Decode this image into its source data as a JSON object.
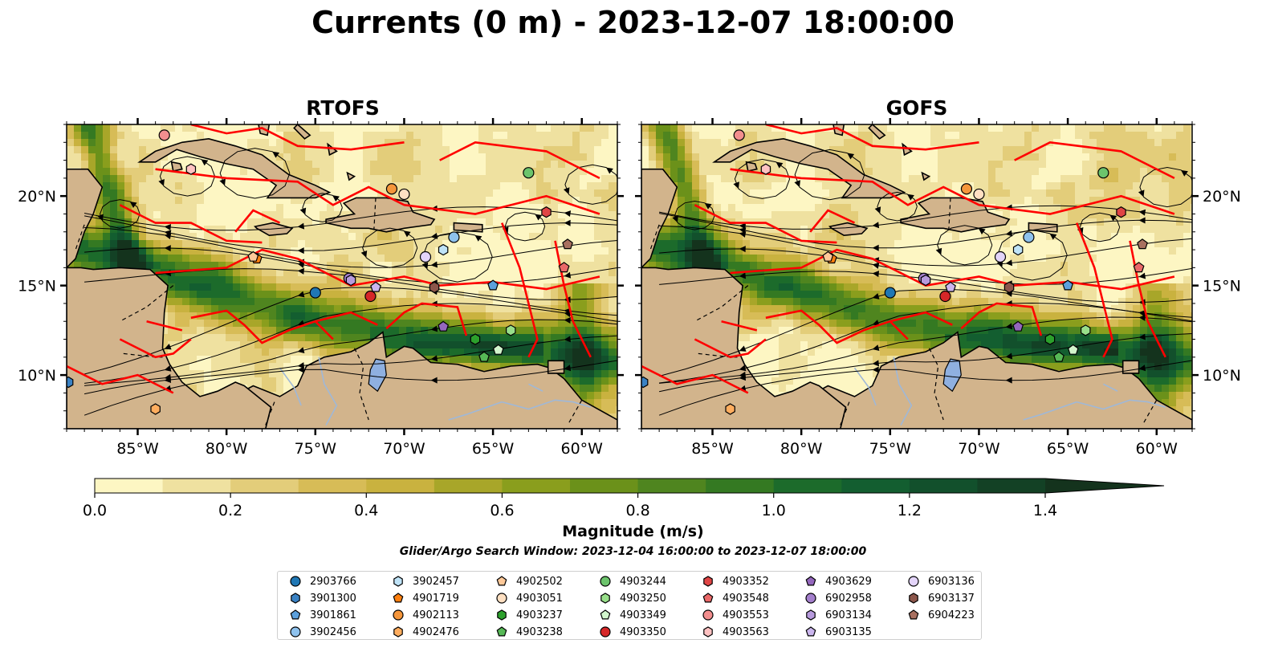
{
  "title": "Currents (0 m) - 2023-12-07 18:00:00",
  "panels": [
    {
      "name": "RTOFS"
    },
    {
      "name": "GOFS"
    }
  ],
  "lat_ticks": [
    "20°N",
    "15°N",
    "10°N"
  ],
  "lon_ticks": [
    "85°W",
    "80°W",
    "75°W",
    "70°W",
    "65°W",
    "60°W"
  ],
  "colorbar": {
    "label": "Magnitude (m/s)",
    "ticks": [
      "0.0",
      "0.2",
      "0.4",
      "0.6",
      "0.8",
      "1.0",
      "1.2",
      "1.4"
    ],
    "vmin": 0.0,
    "vmax": 1.5,
    "colors": [
      "#fdf6c3",
      "#efe1a0",
      "#e3cd7a",
      "#d7bc57",
      "#c9b23f",
      "#a8a629",
      "#8a9e1d",
      "#6b911a",
      "#4f851f",
      "#347922",
      "#1c6b2b",
      "#135e30",
      "#12502c",
      "#134125",
      "#14331d"
    ]
  },
  "search_window": "Glider/Argo Search Window: 2023-12-04 16:00:00 to 2023-12-07 18:00:00",
  "colors": {
    "land": "#d2b48c",
    "eez": "#ff0000",
    "lake": "#8fb0e0",
    "river": "#9fb8d8"
  },
  "legend": [
    {
      "id": "2903766",
      "shape": "circle",
      "color": "#1f77b4"
    },
    {
      "id": "3901300",
      "shape": "hexagon",
      "color": "#3a82c4"
    },
    {
      "id": "3901861",
      "shape": "pentagon",
      "color": "#5ca0dc"
    },
    {
      "id": "3902456",
      "shape": "circle",
      "color": "#8ec2ee"
    },
    {
      "id": "3902457",
      "shape": "hexagon",
      "color": "#bfe3f7"
    },
    {
      "id": "4901719",
      "shape": "pentagon",
      "color": "#ff7f0e"
    },
    {
      "id": "4902113",
      "shape": "circle",
      "color": "#f5963b"
    },
    {
      "id": "4902476",
      "shape": "hexagon",
      "color": "#ffad5e"
    },
    {
      "id": "4902502",
      "shape": "pentagon",
      "color": "#ffc999"
    },
    {
      "id": "4903051",
      "shape": "circle",
      "color": "#ffe0c2"
    },
    {
      "id": "4903237",
      "shape": "hexagon",
      "color": "#2ca02c"
    },
    {
      "id": "4903238",
      "shape": "pentagon",
      "color": "#56b856"
    },
    {
      "id": "4903244",
      "shape": "circle",
      "color": "#6cc46c"
    },
    {
      "id": "4903250",
      "shape": "hexagon",
      "color": "#98df8a"
    },
    {
      "id": "4903349",
      "shape": "pentagon",
      "color": "#d2f5cc"
    },
    {
      "id": "4903350",
      "shape": "circle",
      "color": "#d62728"
    },
    {
      "id": "4903352",
      "shape": "hexagon",
      "color": "#e04545"
    },
    {
      "id": "4903548",
      "shape": "pentagon",
      "color": "#ea6868"
    },
    {
      "id": "4903553",
      "shape": "circle",
      "color": "#f28e8e"
    },
    {
      "id": "4903563",
      "shape": "hexagon",
      "color": "#ffc2c2"
    },
    {
      "id": "4903629",
      "shape": "pentagon",
      "color": "#9467bd"
    },
    {
      "id": "6902958",
      "shape": "circle",
      "color": "#a47fcc"
    },
    {
      "id": "6903134",
      "shape": "hexagon",
      "color": "#b79add"
    },
    {
      "id": "6903135",
      "shape": "pentagon",
      "color": "#cbb6ee"
    },
    {
      "id": "6903136",
      "shape": "circle",
      "color": "#e3d4f9"
    },
    {
      "id": "6903137",
      "shape": "hexagon",
      "color": "#8c564b"
    },
    {
      "id": "6904223",
      "shape": "pentagon",
      "color": "#a87060"
    }
  ],
  "floats": [
    {
      "id": "2903766",
      "lon": -75.0,
      "lat": 14.6
    },
    {
      "id": "3901300",
      "lon": -88.9,
      "lat": 9.6
    },
    {
      "id": "3901861",
      "lon": -65.0,
      "lat": 15.0
    },
    {
      "id": "3902456",
      "lon": -67.2,
      "lat": 17.7
    },
    {
      "id": "3902457",
      "lon": -67.8,
      "lat": 17.0
    },
    {
      "id": "4901719",
      "lon": -78.3,
      "lat": 16.5
    },
    {
      "id": "4902113",
      "lon": -70.7,
      "lat": 20.4
    },
    {
      "id": "4902476",
      "lon": -84.0,
      "lat": 8.1
    },
    {
      "id": "4902502",
      "lon": -78.5,
      "lat": 16.6
    },
    {
      "id": "4903051",
      "lon": -70.0,
      "lat": 20.1
    },
    {
      "id": "4903237",
      "lon": -66.0,
      "lat": 12.0
    },
    {
      "id": "4903238",
      "lon": -65.5,
      "lat": 11.0
    },
    {
      "id": "4903244",
      "lon": -63.0,
      "lat": 21.3
    },
    {
      "id": "4903250",
      "lon": -64.0,
      "lat": 12.5
    },
    {
      "id": "4903349",
      "lon": -64.7,
      "lat": 11.4
    },
    {
      "id": "4903350",
      "lon": -71.9,
      "lat": 14.4
    },
    {
      "id": "4903352",
      "lon": -62.0,
      "lat": 19.1
    },
    {
      "id": "4903548",
      "lon": -61.0,
      "lat": 16.0
    },
    {
      "id": "4903553",
      "lon": -83.5,
      "lat": 23.4
    },
    {
      "id": "4903563",
      "lon": -82.0,
      "lat": 21.5
    },
    {
      "id": "4903629",
      "lon": -67.8,
      "lat": 12.7
    },
    {
      "id": "6902958",
      "lon": -73.1,
      "lat": 15.4
    },
    {
      "id": "6903134",
      "lon": -73.0,
      "lat": 15.3
    },
    {
      "id": "6903135",
      "lon": -71.6,
      "lat": 14.9
    },
    {
      "id": "6903136",
      "lon": -68.8,
      "lat": 16.6
    },
    {
      "id": "6903137",
      "lon": -68.3,
      "lat": 14.9
    },
    {
      "id": "6904223",
      "lon": -60.8,
      "lat": 17.3
    }
  ]
}
